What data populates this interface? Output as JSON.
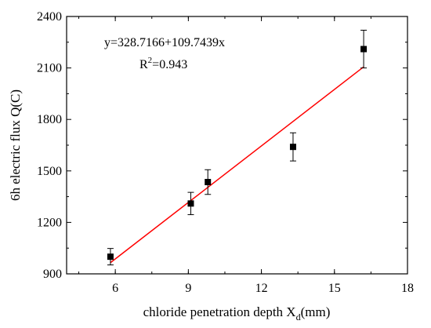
{
  "chart_data": {
    "type": "scatter",
    "xlabel_main": "chloride penetration depth X",
    "xlabel_sub": "d",
    "xlabel_tail": "(mm)",
    "ylabel": "6h electric flux Q(C)",
    "xlim": [
      4,
      18
    ],
    "ylim": [
      900,
      2400
    ],
    "x_ticks": [
      6,
      9,
      12,
      15,
      18
    ],
    "x_tick_labels": [
      "6",
      "9",
      "12",
      "15",
      "18"
    ],
    "y_ticks": [
      900,
      1200,
      1500,
      1800,
      2100,
      2400
    ],
    "y_tick_labels": [
      "900",
      "1200",
      "1500",
      "1800",
      "2100",
      "2400"
    ],
    "grid": false,
    "series": [
      {
        "points": [
          {
            "x": 5.8,
            "y": 1000,
            "err": 48
          },
          {
            "x": 9.1,
            "y": 1310,
            "err": 65
          },
          {
            "x": 9.8,
            "y": 1435,
            "err": 72
          },
          {
            "x": 13.3,
            "y": 1640,
            "err": 82
          },
          {
            "x": 16.2,
            "y": 2210,
            "err": 110
          }
        ],
        "marker": "square",
        "color": "#000000"
      }
    ],
    "fit": {
      "intercept": 328.7166,
      "slope": 109.7439,
      "x_range": [
        5.8,
        16.2
      ],
      "color": "#ff0000"
    },
    "annotations": {
      "equation": "y=328.7166+109.7439x",
      "r2_main": "R",
      "r2_sup": "2",
      "r2_tail": "=0.943"
    }
  }
}
